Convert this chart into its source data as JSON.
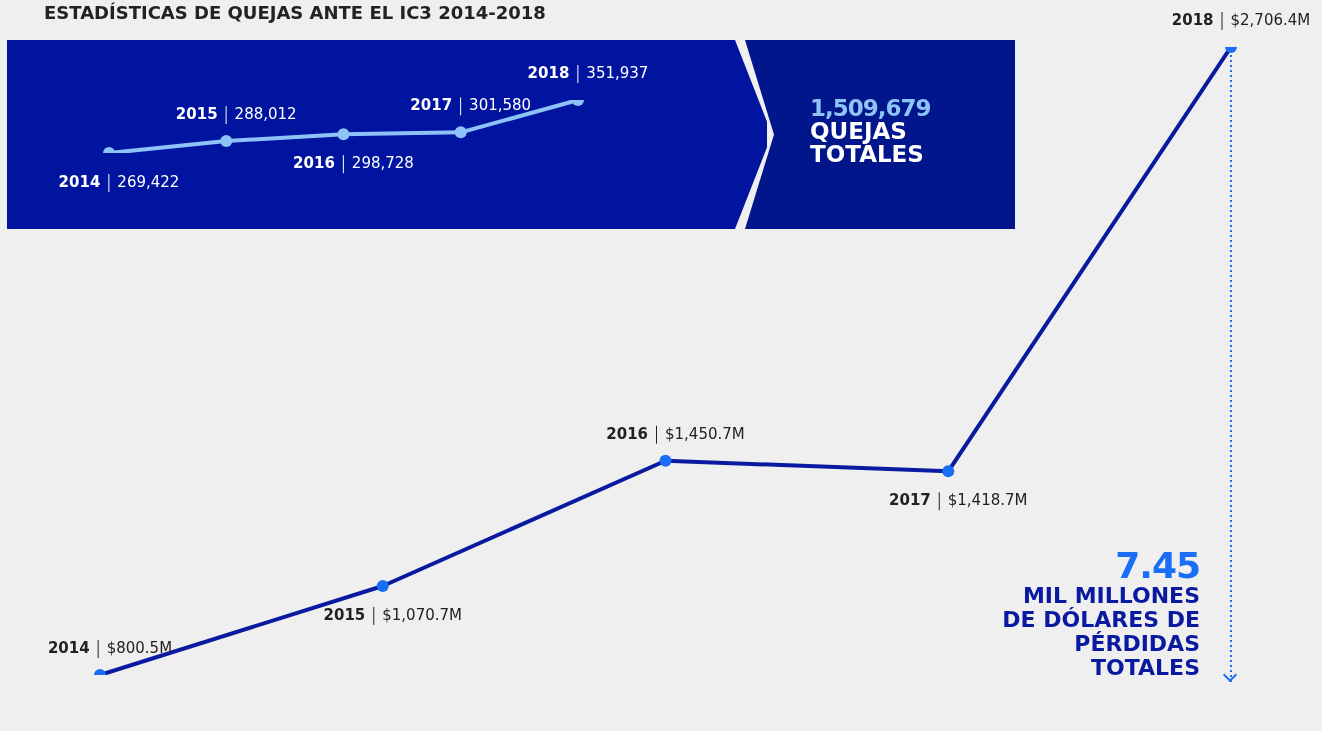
{
  "chart_data": [
    {
      "type": "line",
      "title": "ESTADÍSTICAS DE QUEJAS ANTE EL IC3 2014-2018",
      "categories": [
        "2014",
        "2015",
        "2016",
        "2017",
        "2018"
      ],
      "values": [
        269422,
        288012,
        298728,
        301580,
        351937
      ],
      "value_labels": [
        "269,422",
        "288,012",
        "298,728",
        "301,580",
        "351,937"
      ],
      "color": "#8ec3f7",
      "colors": [
        "#8ec3f7",
        "#8ec3f7",
        "#8ec3f7",
        "#8ec3f7",
        "#8ec3f7"
      ],
      "marker": "circle",
      "annotations": [
        "1,509,679 QUEJAS TOTALES"
      ]
    },
    {
      "type": "line",
      "categories": [
        "2014",
        "2015",
        "2016",
        "2017",
        "2018"
      ],
      "values": [
        800.5,
        1070.7,
        1450.7,
        1418.7,
        2706.4
      ],
      "value_labels": [
        "$800.5M",
        "$1,070.7M",
        "$1,450.7M",
        "$1,418.7M",
        "$2,706.4M"
      ],
      "color": "#0a1aa0",
      "colors": [
        "#1a6ef5",
        "#1a6ef5",
        "#1a6ef5",
        "#1a6ef5",
        "#1a6ef5"
      ],
      "marker": "circle",
      "annotations": [
        {
          "text": "7.45 MIL MILLONES DE DÓLARES DE PÉRDIDAS TOTALES",
          "x": "2018",
          "y": 2706.4
        }
      ]
    }
  ]
}
